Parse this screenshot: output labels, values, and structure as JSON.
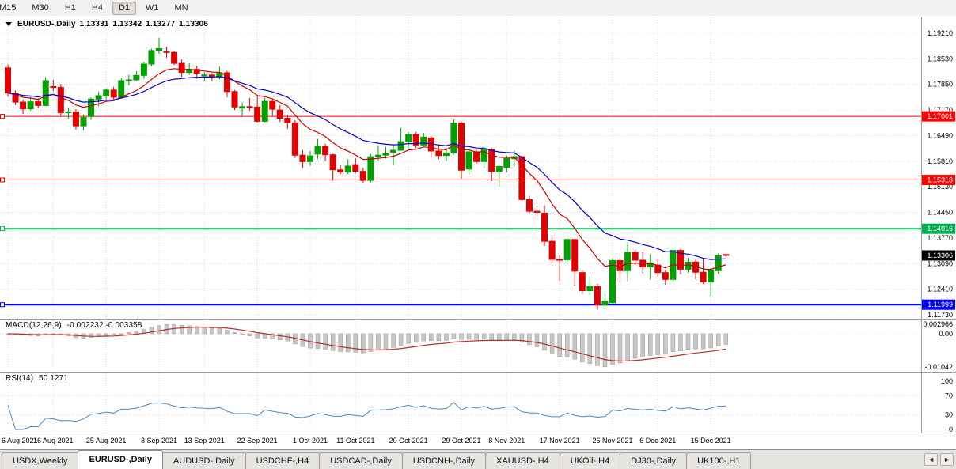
{
  "toolbar": {
    "timeframes": [
      "M15",
      "M30",
      "H1",
      "H4",
      "D1",
      "W1",
      "MN"
    ],
    "active": "D1"
  },
  "chart_header": {
    "symbol": "EURUSD-,Daily",
    "open": "1.13331",
    "high": "1.13342",
    "low": "1.13277",
    "close": "1.13306"
  },
  "indicators": {
    "macd": {
      "label": "MACD(12,26,9)",
      "value": "-0.002232 -0.003358",
      "fast": 12,
      "slow": 26,
      "signal": 9,
      "axis_top": "0.002966",
      "axis_zero": "0.00",
      "axis_bottom": "-0.01042",
      "histogram_color": "#c6c6c6",
      "histogram_border": "#9c9c9c",
      "signal_color": "#b03030"
    },
    "rsi": {
      "label": "RSI(14)",
      "value": "50.1271",
      "period": 14,
      "color": "#4f86c6",
      "levels": [
        "100",
        "70",
        "30",
        "0"
      ]
    }
  },
  "chart_data": {
    "type": "candlestick",
    "symbol": "EURUSD",
    "timeframe": "Daily",
    "price_ticks": [
      "1.19210",
      "1.18530",
      "1.17850",
      "1.17170",
      "1.16490",
      "1.15810",
      "1.15130",
      "1.14450",
      "1.13770",
      "1.13090",
      "1.12410",
      "1.11730"
    ],
    "date_ticks": [
      {
        "index": 0,
        "label": "6 Aug 2021"
      },
      {
        "index": 6,
        "label": "16 Aug 2021"
      },
      {
        "index": 13,
        "label": "25 Aug 2021"
      },
      {
        "index": 20,
        "label": "3 Sep 2021"
      },
      {
        "index": 26,
        "label": "13 Sep 2021"
      },
      {
        "index": 33,
        "label": "22 Sep 2021"
      },
      {
        "index": 40,
        "label": "1 Oct 2021"
      },
      {
        "index": 46,
        "label": "11 Oct 2021"
      },
      {
        "index": 53,
        "label": "20 Oct 2021"
      },
      {
        "index": 60,
        "label": "29 Oct 2021"
      },
      {
        "index": 66,
        "label": "8 Nov 2021"
      },
      {
        "index": 73,
        "label": "17 Nov 2021"
      },
      {
        "index": 80,
        "label": "26 Nov 2021"
      },
      {
        "index": 86,
        "label": "6 Dec 2021"
      },
      {
        "index": 93,
        "label": "15 Dec 2021"
      }
    ],
    "candle_colors": {
      "up": "#00a000",
      "down": "#e00000"
    },
    "moving_averages": [
      {
        "period": 10,
        "color": "#cc0000"
      },
      {
        "period": 20,
        "color": "#0000cc"
      }
    ],
    "hlines": [
      {
        "price": 1.17001,
        "label": "1.17001",
        "color": "#ff0000",
        "width": 1
      },
      {
        "price": 1.15313,
        "label": "1.15313",
        "color": "#ff0000",
        "width": 1
      },
      {
        "price": 1.14016,
        "label": "1.14016",
        "color": "#00b050",
        "width": 2
      },
      {
        "price": 1.11999,
        "label": "1.11999",
        "color": "#0000ff",
        "width": 2
      }
    ],
    "current_price": {
      "value": 1.13306,
      "label": "1.13306",
      "bg": "#000000",
      "fg": "#ffffff"
    },
    "candles": [
      [
        1.1829,
        1.1838,
        1.1752,
        1.1762
      ],
      [
        1.1762,
        1.1769,
        1.173,
        1.1738
      ],
      [
        1.1738,
        1.1745,
        1.1706,
        1.172
      ],
      [
        1.172,
        1.1753,
        1.1716,
        1.1739
      ],
      [
        1.1739,
        1.1748,
        1.1722,
        1.1729
      ],
      [
        1.1729,
        1.1805,
        1.1727,
        1.1795
      ],
      [
        1.1779,
        1.1797,
        1.1767,
        1.1777
      ],
      [
        1.1777,
        1.1786,
        1.1702,
        1.171
      ],
      [
        1.171,
        1.1724,
        1.1694,
        1.1712
      ],
      [
        1.1712,
        1.1719,
        1.1665,
        1.1675
      ],
      [
        1.1675,
        1.1705,
        1.1663,
        1.1697
      ],
      [
        1.17,
        1.175,
        1.1691,
        1.1746
      ],
      [
        1.1746,
        1.1765,
        1.1727,
        1.1755
      ],
      [
        1.1755,
        1.1775,
        1.174,
        1.177
      ],
      [
        1.177,
        1.1779,
        1.1743,
        1.1751
      ],
      [
        1.1751,
        1.1802,
        1.1748,
        1.1795
      ],
      [
        1.1796,
        1.181,
        1.1782,
        1.1797
      ],
      [
        1.1797,
        1.182,
        1.1794,
        1.1809
      ],
      [
        1.1809,
        1.1845,
        1.18,
        1.1839
      ],
      [
        1.1839,
        1.188,
        1.1833,
        1.1875
      ],
      [
        1.1875,
        1.1909,
        1.1866,
        1.188
      ],
      [
        1.1872,
        1.1885,
        1.1856,
        1.187
      ],
      [
        1.187,
        1.1875,
        1.1836,
        1.1841
      ],
      [
        1.1841,
        1.1851,
        1.1805,
        1.1817
      ],
      [
        1.1817,
        1.1841,
        1.181,
        1.1825
      ],
      [
        1.1825,
        1.1834,
        1.18,
        1.1814
      ],
      [
        1.181,
        1.1818,
        1.1795,
        1.181
      ],
      [
        1.181,
        1.1815,
        1.1793,
        1.1805
      ],
      [
        1.1805,
        1.1832,
        1.1799,
        1.1816
      ],
      [
        1.1816,
        1.1821,
        1.1751,
        1.1766
      ],
      [
        1.1766,
        1.177,
        1.1717,
        1.1725
      ],
      [
        1.1722,
        1.1737,
        1.17,
        1.1726
      ],
      [
        1.1726,
        1.1749,
        1.1715,
        1.1725
      ],
      [
        1.1725,
        1.1756,
        1.1684,
        1.1687
      ],
      [
        1.1687,
        1.175,
        1.1683,
        1.174
      ],
      [
        1.174,
        1.1747,
        1.1701,
        1.1719
      ],
      [
        1.1717,
        1.173,
        1.1685,
        1.1695
      ],
      [
        1.1695,
        1.1704,
        1.1667,
        1.1683
      ],
      [
        1.1683,
        1.169,
        1.159,
        1.1597
      ],
      [
        1.1597,
        1.161,
        1.1563,
        1.158
      ],
      [
        1.158,
        1.1608,
        1.1569,
        1.1595
      ],
      [
        1.16,
        1.164,
        1.1587,
        1.1621
      ],
      [
        1.1621,
        1.1627,
        1.1582,
        1.1598
      ],
      [
        1.1598,
        1.1601,
        1.1529,
        1.1558
      ],
      [
        1.1558,
        1.1572,
        1.1546,
        1.1552
      ],
      [
        1.1552,
        1.1586,
        1.1547,
        1.1568
      ],
      [
        1.1572,
        1.1589,
        1.1549,
        1.1554
      ],
      [
        1.1554,
        1.1563,
        1.1524,
        1.153
      ],
      [
        1.153,
        1.1599,
        1.1525,
        1.1593
      ],
      [
        1.1593,
        1.1624,
        1.1583,
        1.1597
      ],
      [
        1.1597,
        1.1619,
        1.1588,
        1.1601
      ],
      [
        1.1605,
        1.1626,
        1.1571,
        1.161
      ],
      [
        1.161,
        1.1669,
        1.1609,
        1.1633
      ],
      [
        1.1633,
        1.1658,
        1.1617,
        1.1652
      ],
      [
        1.1652,
        1.1659,
        1.1616,
        1.1624
      ],
      [
        1.1624,
        1.1656,
        1.1621,
        1.1645
      ],
      [
        1.1643,
        1.1647,
        1.159,
        1.1608
      ],
      [
        1.1608,
        1.1626,
        1.1586,
        1.1596
      ],
      [
        1.1596,
        1.1617,
        1.1582,
        1.1603
      ],
      [
        1.1603,
        1.1692,
        1.1599,
        1.1682
      ],
      [
        1.1682,
        1.1686,
        1.1535,
        1.1557
      ],
      [
        1.156,
        1.161,
        1.1545,
        1.1606
      ],
      [
        1.1606,
        1.1612,
        1.1575,
        1.158
      ],
      [
        1.158,
        1.162,
        1.1562,
        1.1612
      ],
      [
        1.1612,
        1.1616,
        1.1528,
        1.1554
      ],
      [
        1.1554,
        1.1573,
        1.1513,
        1.1567
      ],
      [
        1.1565,
        1.1596,
        1.1551,
        1.1588
      ],
      [
        1.1588,
        1.1609,
        1.1567,
        1.1593
      ],
      [
        1.1593,
        1.1595,
        1.1476,
        1.1479
      ],
      [
        1.1479,
        1.1489,
        1.1443,
        1.1448
      ],
      [
        1.1448,
        1.1463,
        1.1433,
        1.1445
      ],
      [
        1.1443,
        1.1464,
        1.1356,
        1.1368
      ],
      [
        1.1368,
        1.1386,
        1.131,
        1.132
      ],
      [
        1.132,
        1.1332,
        1.1263,
        1.1319
      ],
      [
        1.1319,
        1.1374,
        1.1313,
        1.1373
      ],
      [
        1.1373,
        1.1374,
        1.125,
        1.1289
      ],
      [
        1.1285,
        1.1291,
        1.1228,
        1.1237
      ],
      [
        1.1237,
        1.1275,
        1.1226,
        1.1248
      ],
      [
        1.1248,
        1.1255,
        1.1186,
        1.1199
      ],
      [
        1.1199,
        1.1229,
        1.1187,
        1.1209
      ],
      [
        1.1205,
        1.1323,
        1.1203,
        1.1317
      ],
      [
        1.1317,
        1.1325,
        1.1258,
        1.129
      ],
      [
        1.129,
        1.1365,
        1.1262,
        1.1339
      ],
      [
        1.1339,
        1.1347,
        1.1304,
        1.1318
      ],
      [
        1.1318,
        1.1339,
        1.1284,
        1.13
      ],
      [
        1.13,
        1.1334,
        1.1266,
        1.1311
      ],
      [
        1.1305,
        1.132,
        1.1274,
        1.1285
      ],
      [
        1.1285,
        1.1293,
        1.1253,
        1.1267
      ],
      [
        1.1267,
        1.1354,
        1.1263,
        1.1344
      ],
      [
        1.1344,
        1.1348,
        1.128,
        1.1294
      ],
      [
        1.1294,
        1.1324,
        1.1285,
        1.1313
      ],
      [
        1.1313,
        1.1319,
        1.1267,
        1.1286
      ],
      [
        1.1286,
        1.1322,
        1.1255,
        1.126
      ],
      [
        1.126,
        1.1298,
        1.1222,
        1.129
      ],
      [
        1.129,
        1.1336,
        1.1282,
        1.133
      ],
      [
        1.13331,
        1.13342,
        1.13277,
        1.13306
      ]
    ]
  },
  "tabs": {
    "items": [
      {
        "label": "USDX,Weekly",
        "active": false
      },
      {
        "label": "EURUSD-,Daily",
        "active": true
      },
      {
        "label": "AUDUSD-,Daily",
        "active": false
      },
      {
        "label": "USDCHF-,H4",
        "active": false
      },
      {
        "label": "USDCAD-,Daily",
        "active": false
      },
      {
        "label": "USDCNH-,Daily",
        "active": false
      },
      {
        "label": "XAUUSD-,H4",
        "active": false
      },
      {
        "label": "UKOil-,H4",
        "active": false
      },
      {
        "label": "DJ30-,Daily",
        "active": false
      },
      {
        "label": "UK100-,H1",
        "active": false
      }
    ],
    "scroll_left": "◄",
    "scroll_right": "►"
  }
}
